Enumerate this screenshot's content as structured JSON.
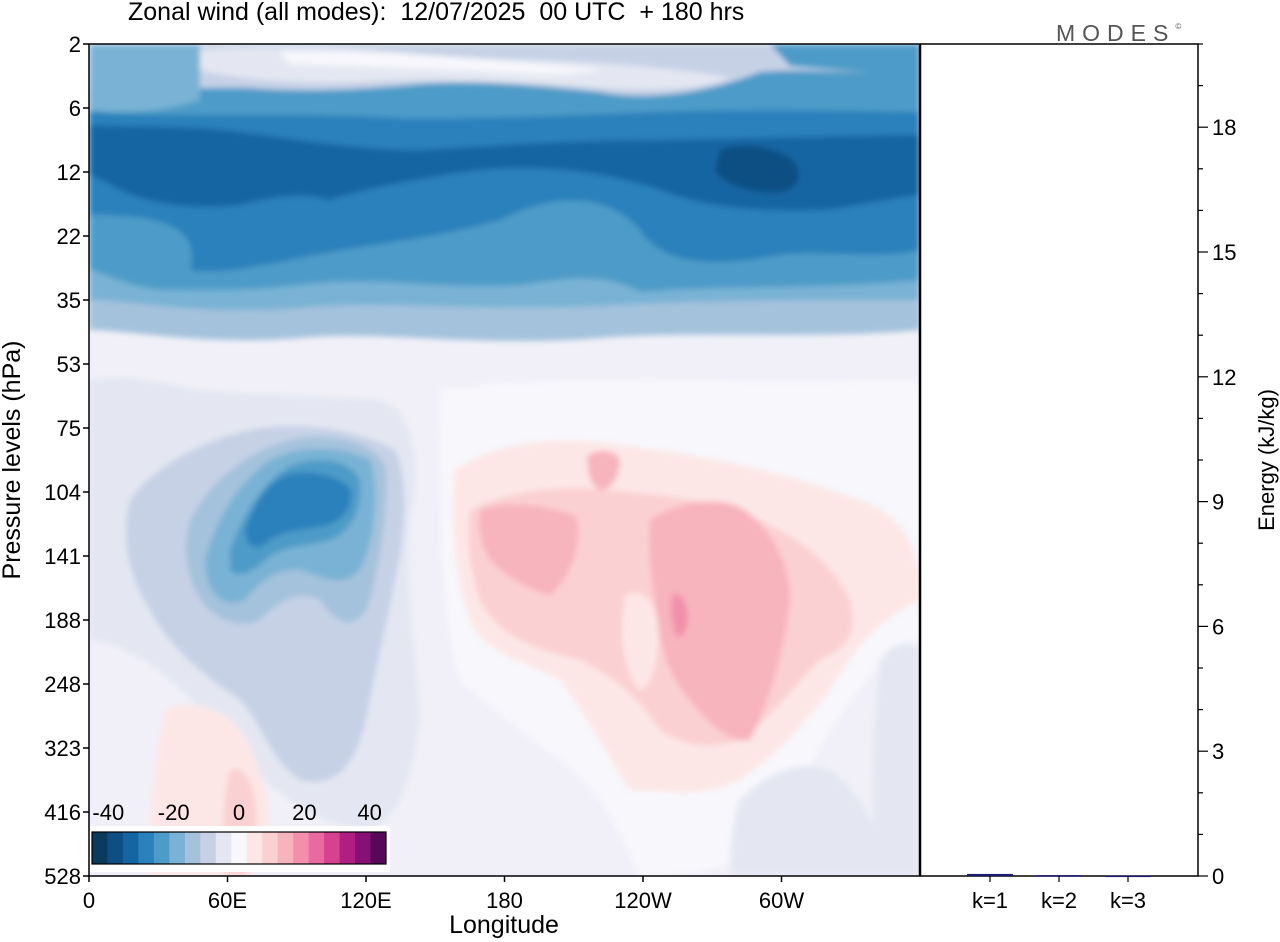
{
  "header": {
    "title": "Zonal wind (all modes):  12/07/2025  00 UTC  + 180 hrs",
    "logo": "MODES",
    "logo_mark": "©"
  },
  "chart_data": [
    {
      "type": "heatmap",
      "title": "Zonal wind (all modes):  12/07/2025  00 UTC  + 180 hrs",
      "xlabel": "Longitude",
      "ylabel": "Pressure levels (hPa)",
      "x_ticks": [
        "0",
        "60E",
        "120E",
        "180",
        "120W",
        "60W"
      ],
      "y_ticks": [
        "2",
        "6",
        "12",
        "22",
        "35",
        "53",
        "75",
        "104",
        "141",
        "188",
        "248",
        "323",
        "416",
        "528"
      ],
      "y_scale": "log",
      "colorbar": {
        "ticks": [
          "-40",
          "-20",
          "0",
          "20",
          "40"
        ],
        "range": [
          -45,
          45
        ],
        "step": 5,
        "colors": [
          "#0a3a5e",
          "#0d4f83",
          "#1565a3",
          "#2b81bb",
          "#4d9bc8",
          "#79b2d4",
          "#a4c2dc",
          "#c6d1e6",
          "#e4e7f2",
          "#f7f7fc",
          "#fde7e6",
          "#fbd0d2",
          "#f7b4bd",
          "#f290ab",
          "#e86a9e",
          "#d6428f",
          "#b11d83",
          "#861075",
          "#580858"
        ]
      },
      "grid": false
    },
    {
      "type": "bar",
      "ylabel": "Energy (kJ/kg)",
      "y_ticks": [
        "0",
        "3",
        "6",
        "9",
        "12",
        "15",
        "18"
      ],
      "ylim": [
        0,
        20
      ],
      "categories": [
        "k=1",
        "k=2",
        "k=3"
      ],
      "values": [
        0.05,
        0.02,
        0.01
      ],
      "bar_color": "#1a1a70"
    }
  ]
}
